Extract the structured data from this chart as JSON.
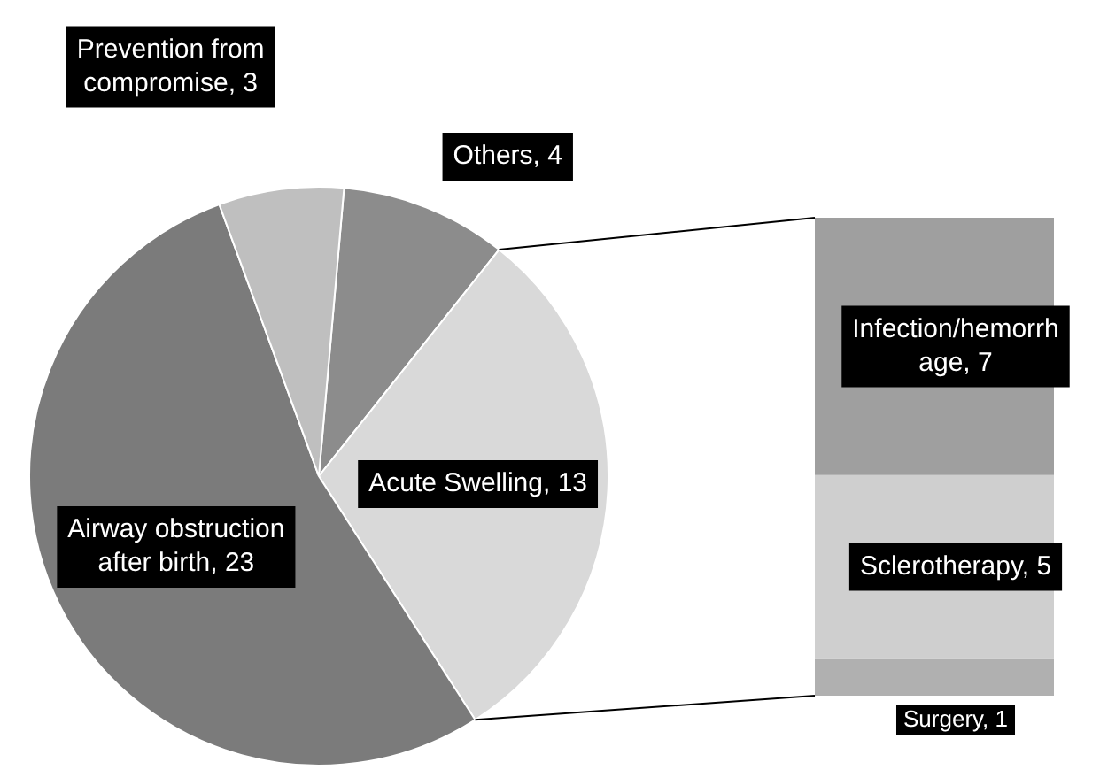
{
  "chart_data": [
    {
      "type": "pie",
      "categories": [
        "Others, 4",
        "Acute Swelling, 13",
        "Airway obstruction after birth, 23",
        "Prevention from compromise, 3"
      ],
      "values": [
        4,
        13,
        23,
        3
      ],
      "colors": [
        "#8c8c8c",
        "#d9d9d9",
        "#7b7b7b",
        "#bfbfbf"
      ]
    },
    {
      "type": "bar",
      "stacked": true,
      "categories": [
        null
      ],
      "series": [
        {
          "color": "#b0b0b0",
          "values": [
            1
          ],
          "value_labels": [
            "Surgery, 1"
          ]
        },
        {
          "color": "#cfcfcf",
          "values": [
            5
          ],
          "value_labels": [
            "Sclerotherapy, 5"
          ]
        },
        {
          "color": "#9f9f9f",
          "values": [
            7
          ],
          "value_labels": [
            "Infection/hemorrhage, 7"
          ]
        }
      ]
    }
  ]
}
